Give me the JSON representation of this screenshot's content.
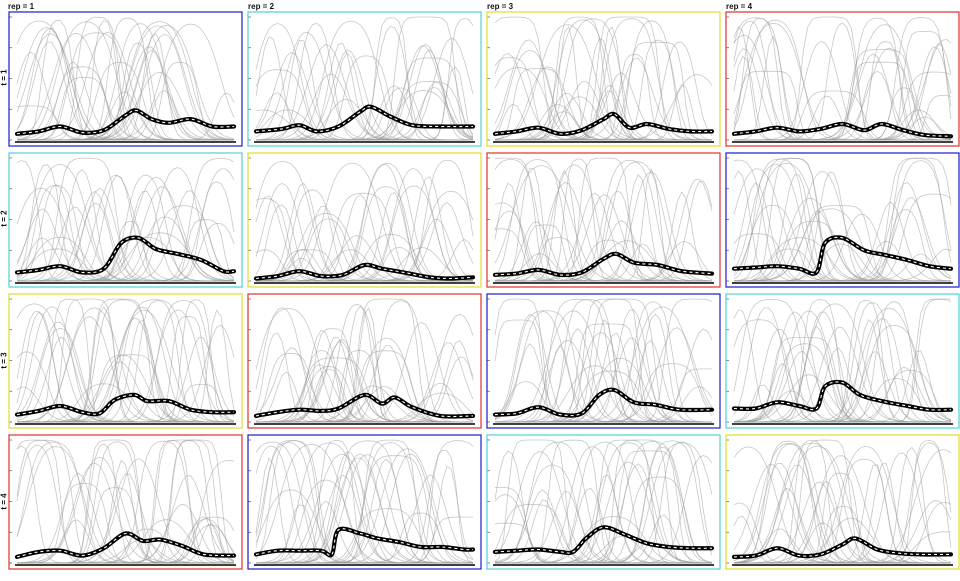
{
  "figure": {
    "col_labels": [
      "rep = 1",
      "rep = 2",
      "rep = 3",
      "rep = 4"
    ],
    "row_labels": [
      "t = 1",
      "t = 2",
      "t = 3",
      "t = 4"
    ]
  },
  "colors": {
    "blue": "#1c1ccc",
    "cyan": "#4fd3d3",
    "yellow": "#e0dc2e",
    "red": "#e0312b",
    "thin_curve": "#9a9a9a",
    "mean_outer": "#000000",
    "mean_inner": "#ffffff"
  },
  "chart_data": {
    "type": "line",
    "layout": "4x4 small multiples",
    "xlim": [
      0,
      1
    ],
    "ylim": [
      0,
      1
    ],
    "grid": false,
    "panels": [
      {
        "row": 1,
        "rep": 1,
        "frame": "blue",
        "mean": [
          [
            0,
            0.05
          ],
          [
            0.1,
            0.07
          ],
          [
            0.2,
            0.11
          ],
          [
            0.3,
            0.06
          ],
          [
            0.4,
            0.08
          ],
          [
            0.5,
            0.2
          ],
          [
            0.55,
            0.24
          ],
          [
            0.62,
            0.17
          ],
          [
            0.7,
            0.14
          ],
          [
            0.8,
            0.17
          ],
          [
            0.9,
            0.11
          ],
          [
            1,
            0.11
          ]
        ]
      },
      {
        "row": 1,
        "rep": 2,
        "frame": "cyan",
        "mean": [
          [
            0,
            0.07
          ],
          [
            0.12,
            0.09
          ],
          [
            0.2,
            0.12
          ],
          [
            0.28,
            0.07
          ],
          [
            0.38,
            0.11
          ],
          [
            0.48,
            0.23
          ],
          [
            0.53,
            0.27
          ],
          [
            0.62,
            0.19
          ],
          [
            0.72,
            0.12
          ],
          [
            0.85,
            0.11
          ],
          [
            1,
            0.11
          ]
        ]
      },
      {
        "row": 1,
        "rep": 3,
        "frame": "yellow",
        "mean": [
          [
            0,
            0.05
          ],
          [
            0.1,
            0.07
          ],
          [
            0.2,
            0.1
          ],
          [
            0.3,
            0.05
          ],
          [
            0.4,
            0.08
          ],
          [
            0.5,
            0.17
          ],
          [
            0.55,
            0.21
          ],
          [
            0.62,
            0.1
          ],
          [
            0.7,
            0.13
          ],
          [
            0.8,
            0.09
          ],
          [
            0.9,
            0.07
          ],
          [
            1,
            0.07
          ]
        ]
      },
      {
        "row": 1,
        "rep": 4,
        "frame": "red",
        "mean": [
          [
            0,
            0.05
          ],
          [
            0.1,
            0.07
          ],
          [
            0.2,
            0.1
          ],
          [
            0.3,
            0.07
          ],
          [
            0.4,
            0.09
          ],
          [
            0.5,
            0.13
          ],
          [
            0.6,
            0.08
          ],
          [
            0.68,
            0.13
          ],
          [
            0.78,
            0.08
          ],
          [
            0.88,
            0.04
          ],
          [
            1,
            0.03
          ]
        ]
      },
      {
        "row": 2,
        "rep": 1,
        "frame": "cyan",
        "mean": [
          [
            0,
            0.07
          ],
          [
            0.1,
            0.09
          ],
          [
            0.2,
            0.12
          ],
          [
            0.3,
            0.07
          ],
          [
            0.4,
            0.1
          ],
          [
            0.48,
            0.31
          ],
          [
            0.56,
            0.35
          ],
          [
            0.64,
            0.26
          ],
          [
            0.74,
            0.22
          ],
          [
            0.85,
            0.17
          ],
          [
            0.95,
            0.08
          ],
          [
            1,
            0.08
          ]
        ]
      },
      {
        "row": 2,
        "rep": 2,
        "frame": "yellow",
        "mean": [
          [
            0,
            0.02
          ],
          [
            0.1,
            0.04
          ],
          [
            0.2,
            0.08
          ],
          [
            0.3,
            0.04
          ],
          [
            0.4,
            0.05
          ],
          [
            0.5,
            0.13
          ],
          [
            0.58,
            0.1
          ],
          [
            0.68,
            0.07
          ],
          [
            0.8,
            0.03
          ],
          [
            0.9,
            0.02
          ],
          [
            1,
            0.03
          ]
        ]
      },
      {
        "row": 2,
        "rep": 3,
        "frame": "red",
        "mean": [
          [
            0,
            0.05
          ],
          [
            0.1,
            0.06
          ],
          [
            0.2,
            0.09
          ],
          [
            0.3,
            0.05
          ],
          [
            0.4,
            0.07
          ],
          [
            0.5,
            0.18
          ],
          [
            0.56,
            0.22
          ],
          [
            0.64,
            0.15
          ],
          [
            0.75,
            0.13
          ],
          [
            0.86,
            0.08
          ],
          [
            1,
            0.06
          ]
        ]
      },
      {
        "row": 2,
        "rep": 4,
        "frame": "blue",
        "mean": [
          [
            0,
            0.1
          ],
          [
            0.1,
            0.11
          ],
          [
            0.2,
            0.12
          ],
          [
            0.3,
            0.1
          ],
          [
            0.38,
            0.07
          ],
          [
            0.42,
            0.31
          ],
          [
            0.5,
            0.35
          ],
          [
            0.6,
            0.25
          ],
          [
            0.7,
            0.21
          ],
          [
            0.8,
            0.17
          ],
          [
            0.9,
            0.12
          ],
          [
            1,
            0.1
          ]
        ]
      },
      {
        "row": 3,
        "rep": 1,
        "frame": "yellow",
        "mean": [
          [
            0,
            0.06
          ],
          [
            0.1,
            0.09
          ],
          [
            0.2,
            0.13
          ],
          [
            0.3,
            0.08
          ],
          [
            0.38,
            0.07
          ],
          [
            0.45,
            0.18
          ],
          [
            0.54,
            0.22
          ],
          [
            0.6,
            0.17
          ],
          [
            0.7,
            0.17
          ],
          [
            0.8,
            0.1
          ],
          [
            0.9,
            0.08
          ],
          [
            1,
            0.08
          ]
        ]
      },
      {
        "row": 3,
        "rep": 2,
        "frame": "red",
        "mean": [
          [
            0,
            0.05
          ],
          [
            0.1,
            0.08
          ],
          [
            0.2,
            0.1
          ],
          [
            0.3,
            0.09
          ],
          [
            0.38,
            0.11
          ],
          [
            0.5,
            0.22
          ],
          [
            0.58,
            0.15
          ],
          [
            0.64,
            0.2
          ],
          [
            0.72,
            0.12
          ],
          [
            0.85,
            0.05
          ],
          [
            1,
            0.05
          ]
        ]
      },
      {
        "row": 3,
        "rep": 3,
        "frame": "blue",
        "mean": [
          [
            0,
            0.06
          ],
          [
            0.1,
            0.07
          ],
          [
            0.2,
            0.12
          ],
          [
            0.3,
            0.06
          ],
          [
            0.4,
            0.07
          ],
          [
            0.48,
            0.22
          ],
          [
            0.55,
            0.26
          ],
          [
            0.64,
            0.16
          ],
          [
            0.74,
            0.14
          ],
          [
            0.85,
            0.1
          ],
          [
            1,
            0.1
          ]
        ]
      },
      {
        "row": 3,
        "rep": 4,
        "frame": "cyan",
        "mean": [
          [
            0,
            0.11
          ],
          [
            0.1,
            0.11
          ],
          [
            0.2,
            0.16
          ],
          [
            0.3,
            0.13
          ],
          [
            0.38,
            0.11
          ],
          [
            0.42,
            0.29
          ],
          [
            0.5,
            0.32
          ],
          [
            0.58,
            0.22
          ],
          [
            0.68,
            0.17
          ],
          [
            0.8,
            0.13
          ],
          [
            0.9,
            0.1
          ],
          [
            1,
            0.1
          ]
        ]
      },
      {
        "row": 4,
        "rep": 1,
        "frame": "red",
        "mean": [
          [
            0,
            0.05
          ],
          [
            0.1,
            0.09
          ],
          [
            0.2,
            0.1
          ],
          [
            0.3,
            0.06
          ],
          [
            0.4,
            0.12
          ],
          [
            0.5,
            0.24
          ],
          [
            0.58,
            0.18
          ],
          [
            0.66,
            0.19
          ],
          [
            0.76,
            0.14
          ],
          [
            0.86,
            0.07
          ],
          [
            1,
            0.06
          ]
        ]
      },
      {
        "row": 4,
        "rep": 2,
        "frame": "blue",
        "mean": [
          [
            0,
            0.07
          ],
          [
            0.1,
            0.1
          ],
          [
            0.2,
            0.1
          ],
          [
            0.3,
            0.1
          ],
          [
            0.35,
            0.07
          ],
          [
            0.38,
            0.27
          ],
          [
            0.48,
            0.24
          ],
          [
            0.56,
            0.2
          ],
          [
            0.66,
            0.17
          ],
          [
            0.76,
            0.13
          ],
          [
            0.86,
            0.13
          ],
          [
            0.96,
            0.11
          ],
          [
            1,
            0.11
          ]
        ]
      },
      {
        "row": 4,
        "rep": 3,
        "frame": "cyan",
        "mean": [
          [
            0,
            0.09
          ],
          [
            0.1,
            0.1
          ],
          [
            0.2,
            0.11
          ],
          [
            0.3,
            0.09
          ],
          [
            0.36,
            0.09
          ],
          [
            0.42,
            0.2
          ],
          [
            0.5,
            0.29
          ],
          [
            0.6,
            0.23
          ],
          [
            0.7,
            0.16
          ],
          [
            0.8,
            0.13
          ],
          [
            0.9,
            0.12
          ],
          [
            1,
            0.12
          ]
        ]
      },
      {
        "row": 4,
        "rep": 4,
        "frame": "yellow",
        "mean": [
          [
            0,
            0.05
          ],
          [
            0.1,
            0.06
          ],
          [
            0.2,
            0.12
          ],
          [
            0.3,
            0.06
          ],
          [
            0.4,
            0.07
          ],
          [
            0.5,
            0.15
          ],
          [
            0.56,
            0.2
          ],
          [
            0.66,
            0.11
          ],
          [
            0.76,
            0.08
          ],
          [
            0.86,
            0.07
          ],
          [
            1,
            0.07
          ]
        ]
      }
    ]
  }
}
